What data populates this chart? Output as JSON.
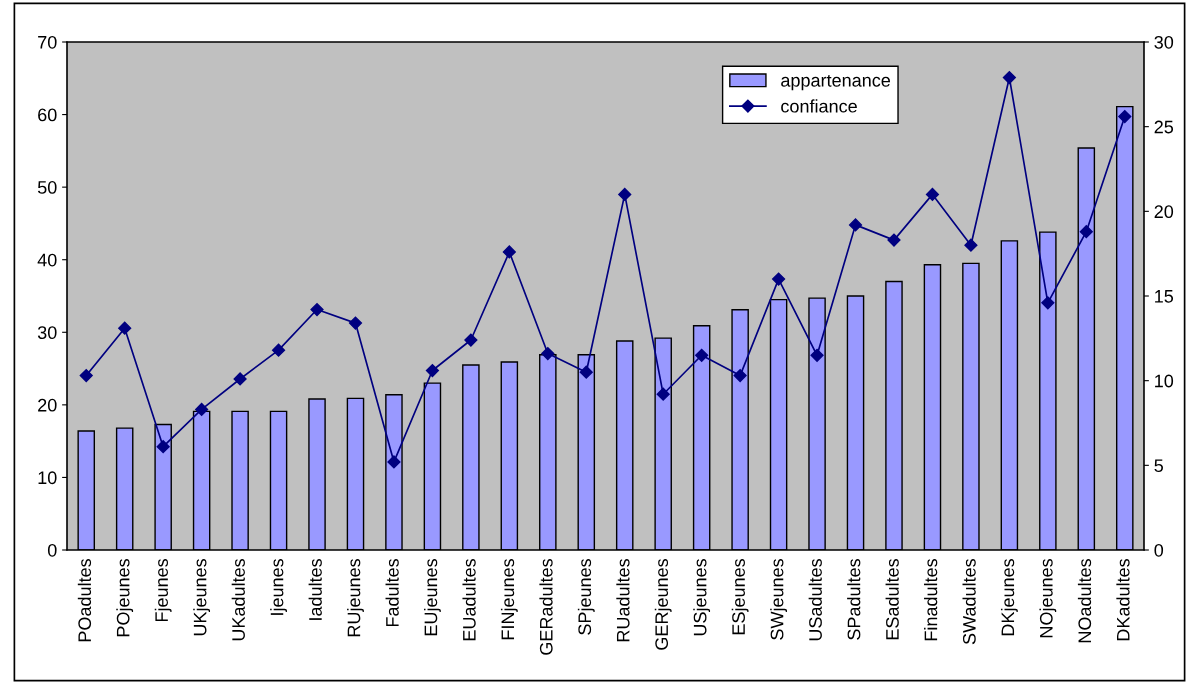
{
  "chart_data": {
    "type": "bar",
    "categories": [
      "POadultes",
      "POjeunes",
      "Fjeunes",
      "UKjeunes",
      "UKadultes",
      "Ijeunes",
      "Iadultes",
      "RUjeunes",
      "Fadultes",
      "EUjeunes",
      "EUadultes",
      "FINjeunes",
      "GERadultes",
      "SPjeunes",
      "RUadultes",
      "GERjeunes",
      "USjeunes",
      "ESjeunes",
      "SWjeunes",
      "USadultes",
      "SPadultes",
      "ESadultes",
      "Finadultes",
      "SWadultes",
      "DKjeunes",
      "NOjeunes",
      "NOadultes",
      "DKadultes"
    ],
    "series": [
      {
        "name": "appartenance",
        "color": "#9999ff",
        "values": [
          16.4,
          16.8,
          17.3,
          19.1,
          19.1,
          19.1,
          20.8,
          20.9,
          21.4,
          23.0,
          25.5,
          25.9,
          26.9,
          26.9,
          28.8,
          29.2,
          30.9,
          33.1,
          34.5,
          34.7,
          35.0,
          37.0,
          39.3,
          39.5,
          42.6,
          43.8,
          55.4,
          61.1
        ]
      },
      {
        "name": "confiance",
        "type": "line",
        "axis": "y2",
        "color": "#000080",
        "marker": "diamond",
        "values": [
          10.3,
          13.1,
          6.1,
          8.3,
          10.1,
          11.8,
          14.2,
          13.4,
          5.2,
          10.6,
          12.4,
          17.6,
          11.6,
          10.5,
          21.0,
          9.2,
          11.5,
          10.3,
          16.0,
          11.5,
          19.2,
          18.3,
          21.0,
          18.0,
          27.9,
          14.6,
          18.8,
          25.6
        ]
      }
    ],
    "ylim": [
      0,
      70
    ],
    "yticks": [
      0,
      10,
      20,
      30,
      40,
      50,
      60,
      70
    ],
    "y2lim": [
      0,
      30
    ],
    "y2ticks": [
      0,
      5,
      10,
      15,
      20,
      25,
      30
    ],
    "grid": false,
    "legend": "top right"
  }
}
